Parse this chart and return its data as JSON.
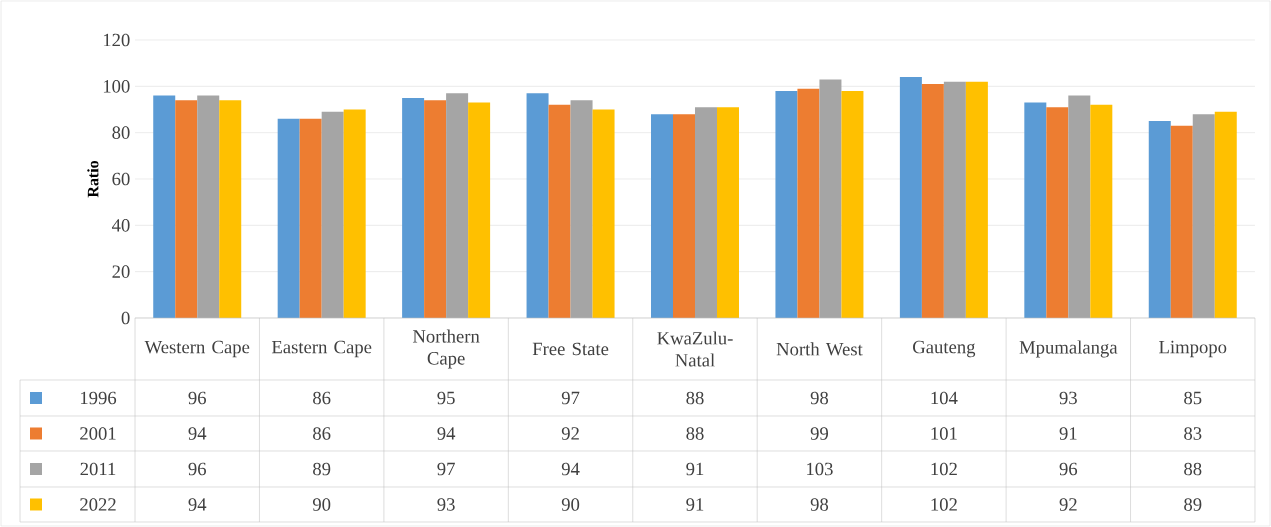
{
  "chart_data": {
    "type": "bar",
    "ylabel": "Ratio",
    "categories": [
      "Western Cape",
      "Eastern Cape",
      "Northern Cape",
      "Free State",
      "KwaZulu-Natal",
      "North West",
      "Gauteng",
      "Mpumalanga",
      "Limpopo"
    ],
    "series": [
      {
        "name": "1996",
        "color": "#5b9bd5",
        "values": [
          96,
          86,
          95,
          97,
          88,
          98,
          104,
          93,
          85
        ]
      },
      {
        "name": "2001",
        "color": "#ed7d31",
        "values": [
          94,
          86,
          94,
          92,
          88,
          99,
          101,
          91,
          83
        ]
      },
      {
        "name": "2011",
        "color": "#a5a5a5",
        "values": [
          96,
          89,
          97,
          94,
          91,
          103,
          102,
          96,
          88
        ]
      },
      {
        "name": "2022",
        "color": "#ffc000",
        "values": [
          94,
          90,
          93,
          90,
          91,
          98,
          102,
          92,
          89
        ]
      }
    ],
    "ylim": [
      0,
      120
    ],
    "yticks": [
      0,
      20,
      40,
      60,
      80,
      100,
      120
    ],
    "grid": "y",
    "legend": "bottom",
    "data_labels": true
  }
}
